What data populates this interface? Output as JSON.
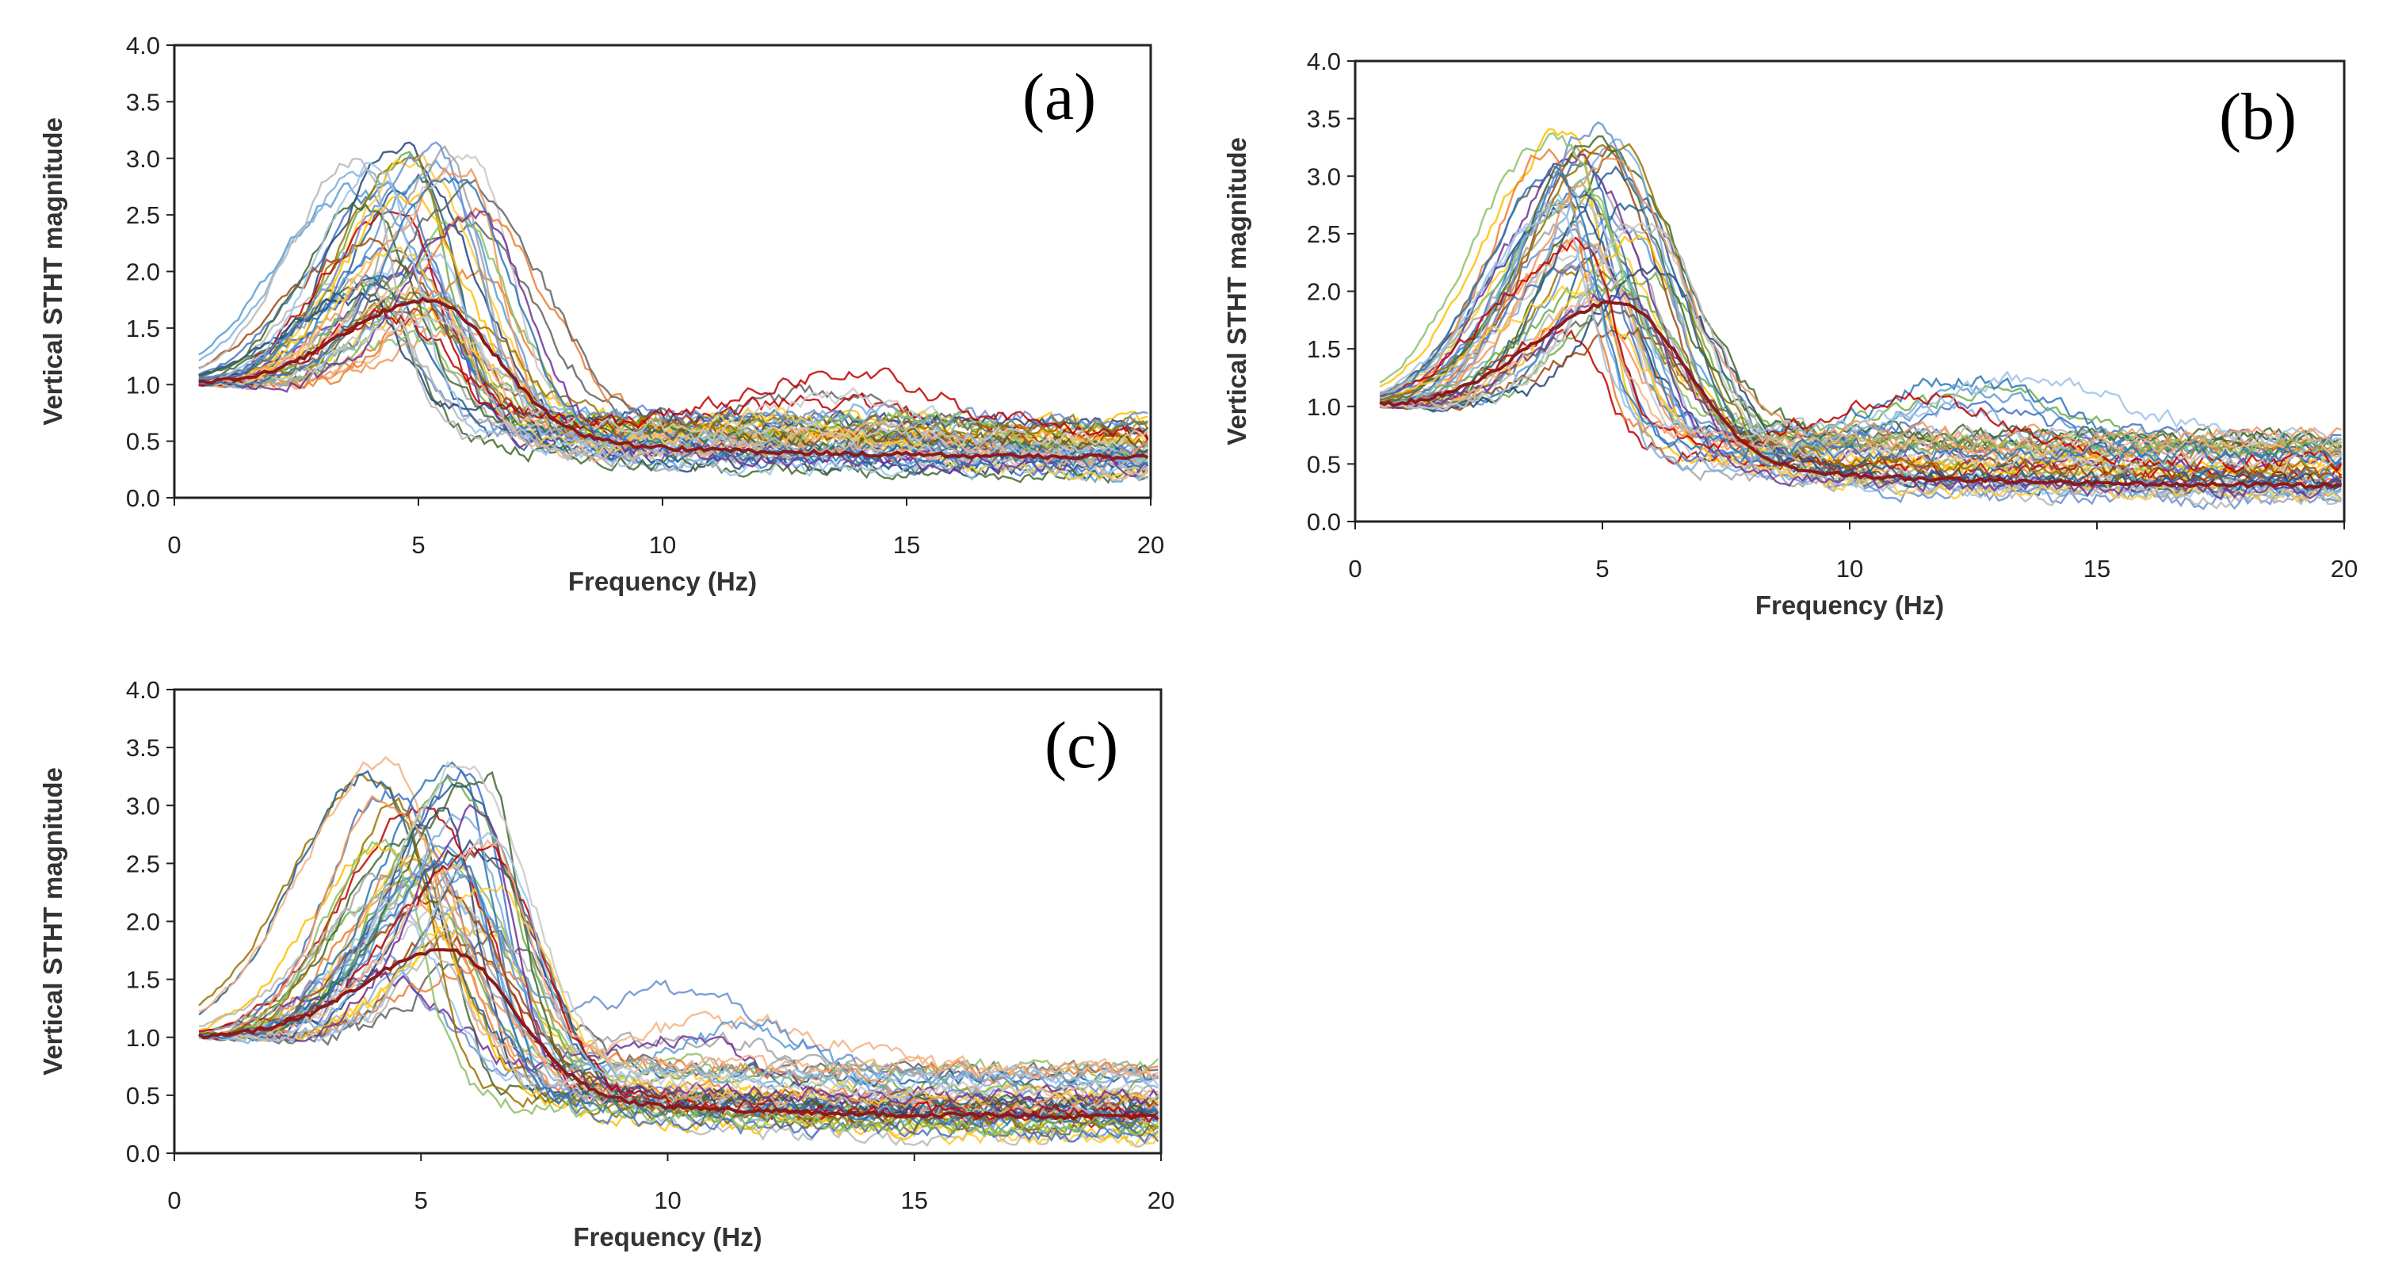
{
  "figure": {
    "colors": {
      "frame": "#222222",
      "palette": [
        "#5b9bd5",
        "#ed7d31",
        "#a5a5a5",
        "#ffc000",
        "#4472c4",
        "#70ad47",
        "#264478",
        "#9e480e",
        "#636363",
        "#997300",
        "#255e91",
        "#43682b",
        "#698ed0",
        "#f1975a",
        "#b7b7b7",
        "#ffcd33",
        "#7cafdd",
        "#8cc168",
        "#6f3198",
        "#c00000",
        "#9dc3e6",
        "#f4b183",
        "#c9c9c9",
        "#2e75b6"
      ],
      "mean": "#8b1a1a"
    }
  },
  "chart_data": [
    {
      "type": "line",
      "panel_label": "(a)",
      "xlabel": "Frequency (Hz)",
      "ylabel": "Vertical STHT magnitude",
      "xlim": [
        0,
        20
      ],
      "ylim": [
        0,
        4
      ],
      "xticks": [
        0,
        5,
        10,
        15,
        20
      ],
      "xtick_labels": [
        "0",
        "5",
        "10",
        "15",
        "20"
      ],
      "yticks": [
        0,
        0.5,
        1,
        1.5,
        2,
        2.5,
        3,
        3.5,
        4
      ],
      "ytick_labels": [
        "0.0",
        "0.5",
        "1.0",
        "1.5",
        "2.0",
        "2.5",
        "3.0",
        "3.5",
        "4.0"
      ],
      "x_start": 0.5,
      "num_series": 48,
      "mean_curve": {
        "peak_freq": 5.2,
        "peak_value": 1.75,
        "high_freq_value": 0.35
      },
      "series_summary": {
        "peak_freq_range": [
          3.6,
          6.2
        ],
        "peak_value_range": [
          1.4,
          3.15
        ],
        "value_at_0_5Hz": 1.05,
        "high_freq_value_range": [
          0.15,
          0.7
        ],
        "secondary_hump": {
          "center_freq": 13.5,
          "value": 1.2
        }
      }
    },
    {
      "type": "line",
      "panel_label": "(b)",
      "xlabel": "Frequency (Hz)",
      "ylabel": "Vertical STHT magnitude",
      "xlim": [
        0,
        20
      ],
      "ylim": [
        0,
        4
      ],
      "xticks": [
        0,
        5,
        10,
        15,
        20
      ],
      "xtick_labels": [
        "0",
        "5",
        "10",
        "15",
        "20"
      ],
      "yticks": [
        0,
        0.5,
        1,
        1.5,
        2,
        2.5,
        3,
        3.5,
        4
      ],
      "ytick_labels": [
        "0.0",
        "0.5",
        "1.0",
        "1.5",
        "2.0",
        "2.5",
        "3.0",
        "3.5",
        "4.0"
      ],
      "x_start": 0.5,
      "num_series": 48,
      "mean_curve": {
        "peak_freq": 5.3,
        "peak_value": 1.9,
        "high_freq_value": 0.3
      },
      "series_summary": {
        "peak_freq_range": [
          3.9,
          6.0
        ],
        "peak_value_range": [
          1.6,
          3.45
        ],
        "value_at_0_5Hz": 1.0,
        "high_freq_value_range": [
          0.15,
          0.75
        ],
        "secondary_hump": {
          "center_freq": 12.5,
          "value": 1.45
        }
      }
    },
    {
      "type": "line",
      "panel_label": "(c)",
      "xlabel": "Frequency (Hz)",
      "ylabel": "Vertical STHT magnitude",
      "xlim": [
        0,
        20
      ],
      "ylim": [
        0,
        4
      ],
      "xticks": [
        0,
        5,
        10,
        15,
        20
      ],
      "xtick_labels": [
        "0",
        "5",
        "10",
        "15",
        "20"
      ],
      "yticks": [
        0,
        0.5,
        1,
        1.5,
        2,
        2.5,
        3,
        3.5,
        4
      ],
      "ytick_labels": [
        "0.0",
        "0.5",
        "1.0",
        "1.5",
        "2.0",
        "2.5",
        "3.0",
        "3.5",
        "4.0"
      ],
      "x_start": 0.5,
      "num_series": 48,
      "mean_curve": {
        "peak_freq": 5.5,
        "peak_value": 1.75,
        "high_freq_value": 0.3
      },
      "series_summary": {
        "peak_freq_range": [
          3.9,
          6.5
        ],
        "peak_value_range": [
          1.5,
          3.4
        ],
        "value_at_0_5Hz": 1.05,
        "high_freq_value_range": [
          0.1,
          0.75
        ],
        "secondary_hump": {
          "center_freq": 11.5,
          "value": 1.45
        }
      }
    }
  ]
}
